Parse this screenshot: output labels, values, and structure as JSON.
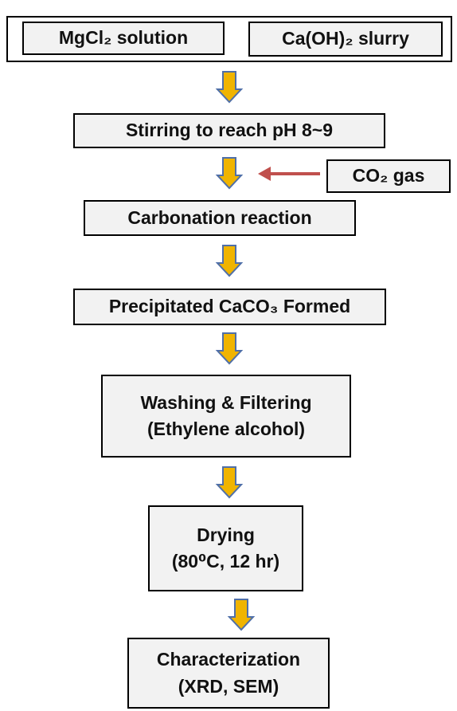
{
  "inputs": [
    "MgCl₂ solution",
    "Ca(OH)₂ slurry"
  ],
  "steps": [
    {
      "lines": [
        "Stirring to reach pH 8~9"
      ]
    },
    {
      "lines": [
        "Carbonation reaction"
      ]
    },
    {
      "lines": [
        "Precipitated CaCO₃ Formed"
      ]
    },
    {
      "lines": [
        "Washing & Filtering",
        "(Ethylene alcohol)"
      ]
    },
    {
      "lines": [
        "Drying",
        "(80⁰C, 12 hr)"
      ]
    },
    {
      "lines": [
        "Characterization",
        "(XRD, SEM)"
      ]
    }
  ],
  "gas_input": "CO₂ gas"
}
